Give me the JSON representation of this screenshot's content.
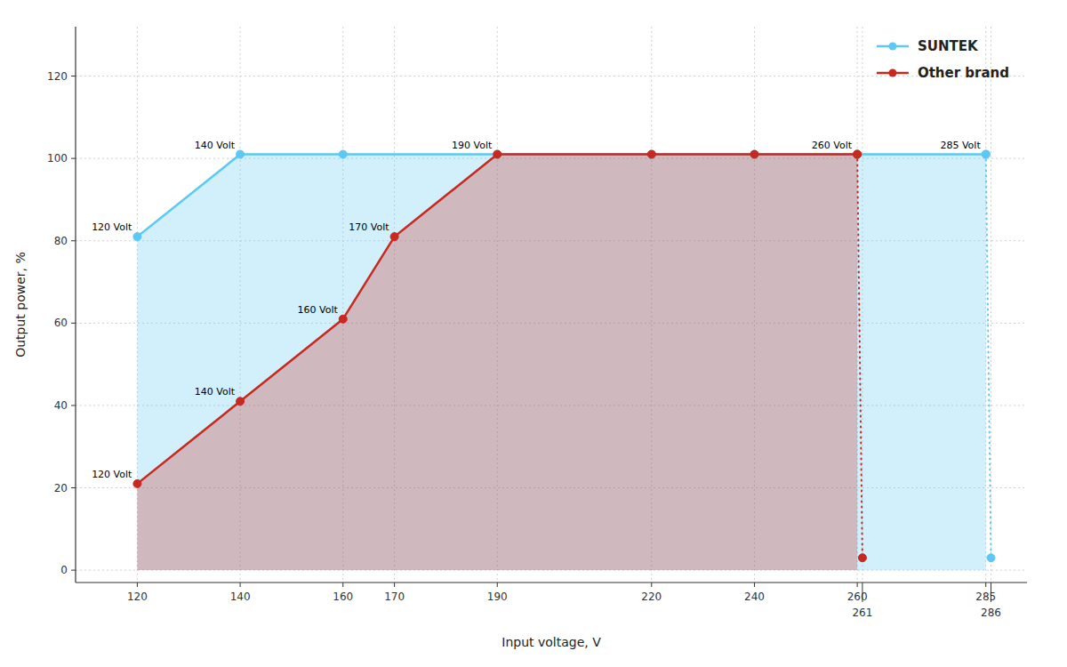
{
  "chart_data": {
    "type": "line",
    "x_label": "Input voltage, V",
    "y_label": "Output power, %",
    "xlim": [
      108,
      293
    ],
    "ylim": [
      -3,
      132
    ],
    "xticks": [
      120,
      140,
      160,
      170,
      190,
      220,
      240,
      260,
      261,
      285,
      286
    ],
    "yticks": [
      0,
      20,
      40,
      60,
      80,
      100,
      120
    ],
    "grid": true,
    "legend": "upper right",
    "series": [
      {
        "name": "SUNTEK",
        "type": "area",
        "color": "#5BC8F5",
        "marker": "circle",
        "line_style": "solid",
        "x": [
          120,
          140,
          160,
          190,
          220,
          240,
          260,
          285
        ],
        "values": [
          81,
          101,
          101,
          101,
          101,
          101,
          101,
          101
        ]
      },
      {
        "type": "line",
        "color": "#5BC8F5",
        "marker": "circle",
        "line_style": "dotted",
        "x": [
          285,
          286
        ],
        "values": [
          101,
          3
        ]
      },
      {
        "name": "Other brand",
        "type": "area",
        "color": "#C8281E",
        "marker": "circle",
        "line_style": "solid",
        "x": [
          120,
          140,
          160,
          170,
          190,
          220,
          240,
          260
        ],
        "values": [
          21,
          41,
          61,
          81,
          101,
          101,
          101,
          101
        ]
      },
      {
        "type": "line",
        "color": "#C8281E",
        "marker": "circle",
        "line_style": "dotted",
        "x": [
          260,
          261
        ],
        "values": [
          101,
          3
        ]
      }
    ],
    "annotations": [
      {
        "text": "120 Volt",
        "x": 120,
        "y": 81
      },
      {
        "text": "140 Volt",
        "x": 140,
        "y": 101
      },
      {
        "text": "190 Volt",
        "x": 190,
        "y": 101
      },
      {
        "text": "260 Volt",
        "x": 260,
        "y": 101
      },
      {
        "text": "285 Volt",
        "x": 285,
        "y": 101
      },
      {
        "text": "120 Volt",
        "x": 120,
        "y": 21
      },
      {
        "text": "140 Volt",
        "x": 140,
        "y": 41
      },
      {
        "text": "160 Volt",
        "x": 160,
        "y": 61
      },
      {
        "text": "170 Volt",
        "x": 170,
        "y": 81
      }
    ]
  }
}
